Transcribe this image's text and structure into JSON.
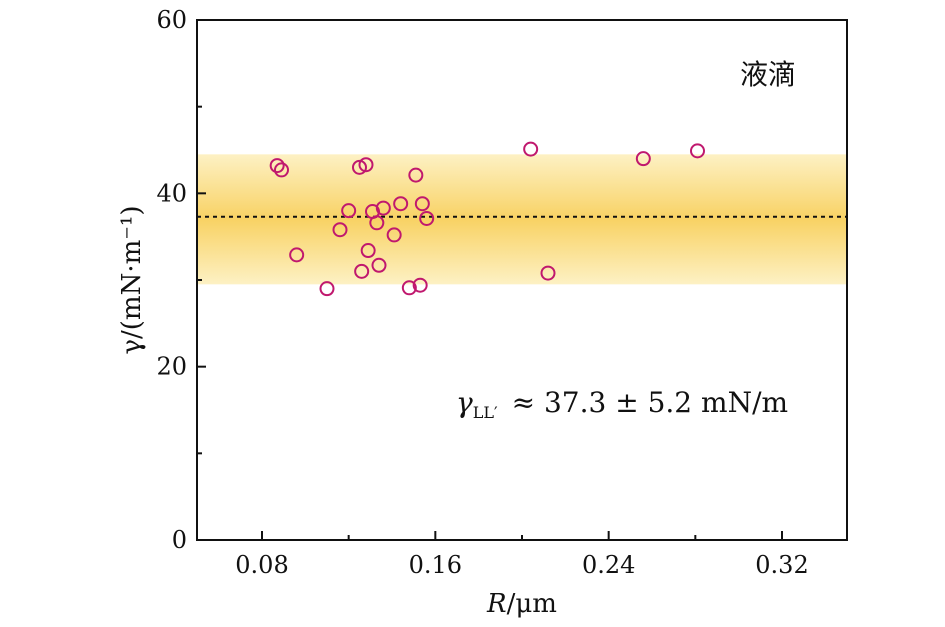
{
  "chart_data": {
    "type": "scatter",
    "title": "",
    "xlabel_var": "R",
    "xlabel_unit": "/μm",
    "ylabel": "γ/(mN·m⁻¹)",
    "xlim": [
      0.05,
      0.35
    ],
    "ylim": [
      0,
      60
    ],
    "xticks": [
      0.08,
      0.16,
      0.24,
      0.32
    ],
    "xtick_labels": [
      "0.08",
      "0.16",
      "0.24",
      "0.32"
    ],
    "yticks": [
      0,
      20,
      40,
      60
    ],
    "ytick_labels": [
      "0",
      "20",
      "40",
      "60"
    ],
    "x_minor_ticks": [
      0.12,
      0.2,
      0.28
    ],
    "y_minor_ticks": [
      10,
      30,
      50
    ],
    "grid": false,
    "marker_color": "#c0186e",
    "band": {
      "low": 29.5,
      "high": 44.5,
      "color": "#f9d66a"
    },
    "mean_line": {
      "value": 37.3,
      "style": "dotted"
    },
    "series": [
      {
        "points": [
          [
            0.087,
            43.2
          ],
          [
            0.089,
            42.7
          ],
          [
            0.096,
            32.9
          ],
          [
            0.11,
            29.0
          ],
          [
            0.116,
            35.8
          ],
          [
            0.12,
            38.0
          ],
          [
            0.125,
            43.0
          ],
          [
            0.126,
            31.0
          ],
          [
            0.128,
            43.3
          ],
          [
            0.129,
            33.4
          ],
          [
            0.131,
            37.9
          ],
          [
            0.133,
            36.6
          ],
          [
            0.134,
            31.7
          ],
          [
            0.136,
            38.3
          ],
          [
            0.141,
            35.2
          ],
          [
            0.144,
            38.8
          ],
          [
            0.148,
            29.1
          ],
          [
            0.151,
            42.1
          ],
          [
            0.153,
            29.4
          ],
          [
            0.154,
            38.8
          ],
          [
            0.156,
            37.1
          ],
          [
            0.204,
            45.1
          ],
          [
            0.212,
            30.8
          ],
          [
            0.256,
            44.0
          ],
          [
            0.281,
            44.9
          ]
        ]
      }
    ],
    "annotations": {
      "label_cn": "液滴",
      "gamma_symbol": "γ",
      "gamma_sub": "LL′",
      "gamma_text": "≈ 37.3 ± 5.2 mN/m"
    }
  }
}
